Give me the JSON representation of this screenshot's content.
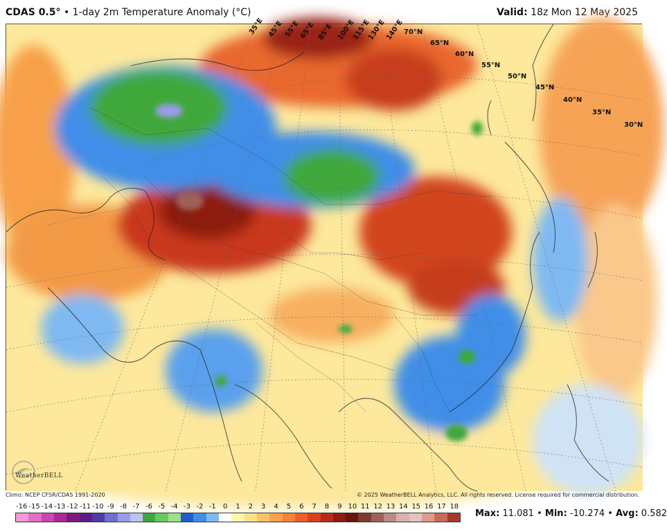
{
  "header": {
    "product": "CDAS 0.5°",
    "separator": "•",
    "subtitle": "1-day 2m Temperature Anomaly (°C)",
    "valid_label": "Valid:",
    "valid_value": "18z Mon 12 May 2025"
  },
  "map": {
    "latitude_labels": [
      "70°N",
      "65°N",
      "60°N",
      "55°N",
      "50°N",
      "45°N",
      "40°N",
      "35°N",
      "30°N"
    ],
    "longitude_labels": [
      "35°E",
      "45°E",
      "55°E",
      "65°E",
      "85°E",
      "100°E",
      "115°E",
      "130°E",
      "140°E"
    ],
    "logo_text": "WeatherBELL"
  },
  "footer": {
    "climo": "Climo: NCEP CFSR/CDAS 1991-2020",
    "copyright": "© 2025 WeatherBELL Analytics, LLC. All rights reserved. License required for commercial distribution."
  },
  "colorbar": {
    "ticks": [
      "-16",
      "-15",
      "-14",
      "-13",
      "-12",
      "-11",
      "-10",
      "-9",
      "-8",
      "-7",
      "-6",
      "-5",
      "-4",
      "-3",
      "-2",
      "-1",
      "0",
      "1",
      "2",
      "3",
      "4",
      "5",
      "6",
      "7",
      "8",
      "9",
      "10",
      "11",
      "12",
      "13",
      "14",
      "15",
      "16",
      "17",
      "18"
    ],
    "colors": [
      "#f29bd6",
      "#e66ec8",
      "#cc45b0",
      "#a82a92",
      "#7d1b7a",
      "#5c1c86",
      "#4f3aa6",
      "#6f6fd0",
      "#9b9be8",
      "#bfc3f0",
      "#3fa83b",
      "#69c95a",
      "#9be08a",
      "#1c5fd1",
      "#3f8ee8",
      "#7fb9f2",
      "#ffffff",
      "#fff6b3",
      "#fde08a",
      "#fbc263",
      "#f9a24a",
      "#f4823c",
      "#ec5f2c",
      "#d9401f",
      "#b72b17",
      "#8c1d10",
      "#6b1410",
      "#7e3a30",
      "#a0605a",
      "#bf8a85",
      "#d9b0ad",
      "#e6c2c0",
      "#e09a8e",
      "#c96a5c",
      "#a23b2c"
    ]
  },
  "stats": {
    "max_label": "Max",
    "max_value": "11.081",
    "min_label": "Min",
    "min_value": "-10.274",
    "avg_label": "Avg",
    "avg_value": "0.582"
  }
}
